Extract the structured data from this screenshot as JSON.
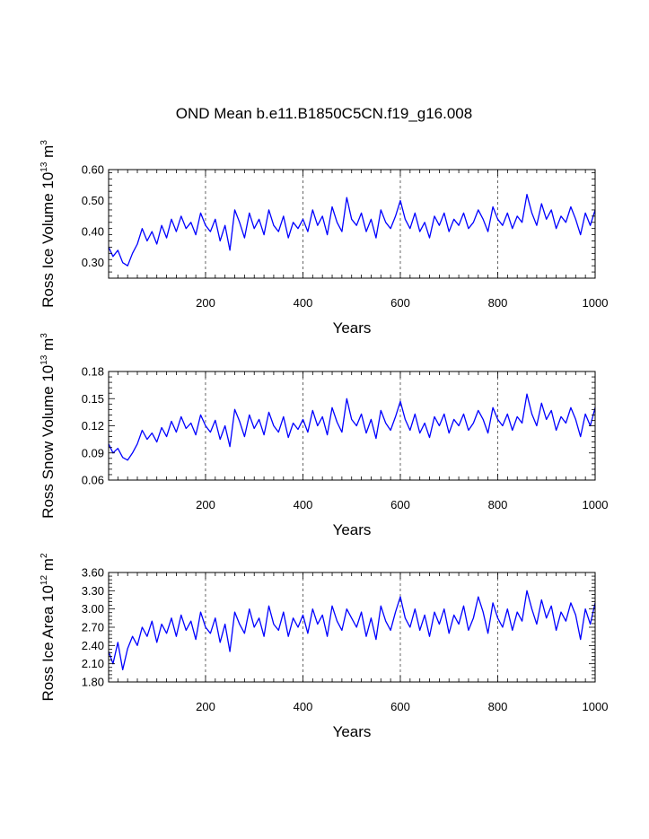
{
  "figure": {
    "title": "OND Mean b.e11.B1850C5CN.f19_g16.008"
  },
  "chart_data": [
    {
      "type": "line",
      "id": "ice-volume",
      "title": "OND Mean b.e11.B1850C5CN.f19_g16.008",
      "xlabel": "Years",
      "ylabel": "Ross Ice Volume 10",
      "ylabel_sup": "13",
      "ylabel_unit": " m",
      "ylabel_unit_sup": "3",
      "xlim": [
        1,
        1000
      ],
      "ylim": [
        0.25,
        0.6
      ],
      "xticks": [
        200,
        400,
        600,
        800,
        1000
      ],
      "xtick_labels": [
        "200",
        "400",
        "600",
        "800",
        "1000"
      ],
      "yticks": [
        0.3,
        0.4,
        0.5,
        0.6
      ],
      "ytick_labels": [
        "0.30",
        "0.40",
        "0.50",
        "0.60"
      ],
      "grid": "dashed vertical lines at 200, 400, 600, 800",
      "line_color": "#0000ff",
      "series": [
        {
          "name": "Ross Ice Volume",
          "x": [
            1,
            10,
            20,
            30,
            40,
            50,
            60,
            70,
            80,
            90,
            100,
            110,
            120,
            130,
            140,
            150,
            160,
            170,
            180,
            190,
            200,
            210,
            220,
            230,
            240,
            250,
            260,
            270,
            280,
            290,
            300,
            310,
            320,
            330,
            340,
            350,
            360,
            370,
            380,
            390,
            400,
            410,
            420,
            430,
            440,
            450,
            460,
            470,
            480,
            490,
            500,
            510,
            520,
            530,
            540,
            550,
            560,
            570,
            580,
            590,
            600,
            610,
            620,
            630,
            640,
            650,
            660,
            670,
            680,
            690,
            700,
            710,
            720,
            730,
            740,
            750,
            760,
            770,
            780,
            790,
            800,
            810,
            820,
            830,
            840,
            850,
            860,
            870,
            880,
            890,
            900,
            910,
            920,
            930,
            940,
            950,
            960,
            970,
            980,
            990,
            1000
          ],
          "values": [
            0.35,
            0.32,
            0.34,
            0.3,
            0.29,
            0.33,
            0.36,
            0.41,
            0.37,
            0.4,
            0.36,
            0.42,
            0.38,
            0.44,
            0.4,
            0.45,
            0.41,
            0.43,
            0.39,
            0.46,
            0.42,
            0.4,
            0.44,
            0.37,
            0.42,
            0.34,
            0.47,
            0.43,
            0.38,
            0.46,
            0.41,
            0.44,
            0.39,
            0.47,
            0.42,
            0.4,
            0.45,
            0.38,
            0.43,
            0.41,
            0.44,
            0.4,
            0.47,
            0.42,
            0.45,
            0.39,
            0.48,
            0.43,
            0.4,
            0.51,
            0.44,
            0.42,
            0.46,
            0.4,
            0.44,
            0.38,
            0.47,
            0.43,
            0.41,
            0.45,
            0.5,
            0.44,
            0.41,
            0.46,
            0.4,
            0.43,
            0.38,
            0.45,
            0.42,
            0.46,
            0.4,
            0.44,
            0.42,
            0.46,
            0.41,
            0.43,
            0.47,
            0.44,
            0.4,
            0.48,
            0.44,
            0.42,
            0.46,
            0.41,
            0.45,
            0.43,
            0.52,
            0.46,
            0.42,
            0.49,
            0.44,
            0.47,
            0.41,
            0.45,
            0.43,
            0.48,
            0.44,
            0.39,
            0.46,
            0.42,
            0.47
          ]
        }
      ]
    },
    {
      "type": "line",
      "id": "snow-volume",
      "xlabel": "Years",
      "ylabel": "Ross Snow Volume 10",
      "ylabel_sup": "13",
      "ylabel_unit": " m",
      "ylabel_unit_sup": "3",
      "xlim": [
        1,
        1000
      ],
      "ylim": [
        0.06,
        0.18
      ],
      "xticks": [
        200,
        400,
        600,
        800,
        1000
      ],
      "xtick_labels": [
        "200",
        "400",
        "600",
        "800",
        "1000"
      ],
      "yticks": [
        0.06,
        0.09,
        0.12,
        0.15,
        0.18
      ],
      "ytick_labels": [
        "0.06",
        "0.09",
        "0.12",
        "0.15",
        "0.18"
      ],
      "grid": "dashed vertical lines at 200, 400, 600, 800",
      "line_color": "#0000ff",
      "series": [
        {
          "name": "Ross Snow Volume",
          "x": [
            1,
            10,
            20,
            30,
            40,
            50,
            60,
            70,
            80,
            90,
            100,
            110,
            120,
            130,
            140,
            150,
            160,
            170,
            180,
            190,
            200,
            210,
            220,
            230,
            240,
            250,
            260,
            270,
            280,
            290,
            300,
            310,
            320,
            330,
            340,
            350,
            360,
            370,
            380,
            390,
            400,
            410,
            420,
            430,
            440,
            450,
            460,
            470,
            480,
            490,
            500,
            510,
            520,
            530,
            540,
            550,
            560,
            570,
            580,
            590,
            600,
            610,
            620,
            630,
            640,
            650,
            660,
            670,
            680,
            690,
            700,
            710,
            720,
            730,
            740,
            750,
            760,
            770,
            780,
            790,
            800,
            810,
            820,
            830,
            840,
            850,
            860,
            870,
            880,
            890,
            900,
            910,
            920,
            930,
            940,
            950,
            960,
            970,
            980,
            990,
            1000
          ],
          "values": [
            0.1,
            0.09,
            0.095,
            0.085,
            0.082,
            0.09,
            0.1,
            0.115,
            0.105,
            0.112,
            0.102,
            0.118,
            0.108,
            0.125,
            0.113,
            0.13,
            0.117,
            0.123,
            0.11,
            0.132,
            0.12,
            0.113,
            0.126,
            0.105,
            0.12,
            0.097,
            0.138,
            0.125,
            0.108,
            0.132,
            0.117,
            0.127,
            0.11,
            0.135,
            0.12,
            0.113,
            0.13,
            0.107,
            0.123,
            0.116,
            0.127,
            0.113,
            0.137,
            0.12,
            0.13,
            0.11,
            0.14,
            0.124,
            0.113,
            0.15,
            0.127,
            0.12,
            0.133,
            0.112,
            0.127,
            0.106,
            0.137,
            0.123,
            0.115,
            0.13,
            0.147,
            0.127,
            0.115,
            0.133,
            0.112,
            0.123,
            0.107,
            0.13,
            0.12,
            0.133,
            0.112,
            0.127,
            0.12,
            0.133,
            0.115,
            0.123,
            0.137,
            0.127,
            0.112,
            0.14,
            0.127,
            0.12,
            0.133,
            0.115,
            0.13,
            0.123,
            0.155,
            0.133,
            0.12,
            0.145,
            0.127,
            0.137,
            0.115,
            0.13,
            0.123,
            0.14,
            0.127,
            0.108,
            0.133,
            0.12,
            0.14
          ]
        }
      ]
    },
    {
      "type": "line",
      "id": "ice-area",
      "xlabel": "Years",
      "ylabel": "Ross Ice Area 10",
      "ylabel_sup": "12",
      "ylabel_unit": " m",
      "ylabel_unit_sup": "2",
      "xlim": [
        1,
        1000
      ],
      "ylim": [
        1.8,
        3.6
      ],
      "xticks": [
        200,
        400,
        600,
        800,
        1000
      ],
      "xtick_labels": [
        "200",
        "400",
        "600",
        "800",
        "1000"
      ],
      "yticks": [
        1.8,
        2.1,
        2.4,
        2.7,
        3.0,
        3.3,
        3.6
      ],
      "ytick_labels": [
        "1.80",
        "2.10",
        "2.40",
        "2.70",
        "3.00",
        "3.30",
        "3.60"
      ],
      "grid": "dashed vertical lines at 200, 400, 600, 800",
      "line_color": "#0000ff",
      "series": [
        {
          "name": "Ross Ice Area",
          "x": [
            1,
            10,
            20,
            30,
            40,
            50,
            60,
            70,
            80,
            90,
            100,
            110,
            120,
            130,
            140,
            150,
            160,
            170,
            180,
            190,
            200,
            210,
            220,
            230,
            240,
            250,
            260,
            270,
            280,
            290,
            300,
            310,
            320,
            330,
            340,
            350,
            360,
            370,
            380,
            390,
            400,
            410,
            420,
            430,
            440,
            450,
            460,
            470,
            480,
            490,
            500,
            510,
            520,
            530,
            540,
            550,
            560,
            570,
            580,
            590,
            600,
            610,
            620,
            630,
            640,
            650,
            660,
            670,
            680,
            690,
            700,
            710,
            720,
            730,
            740,
            750,
            760,
            770,
            780,
            790,
            800,
            810,
            820,
            830,
            840,
            850,
            860,
            870,
            880,
            890,
            900,
            910,
            920,
            930,
            940,
            950,
            960,
            970,
            980,
            990,
            1000
          ],
          "values": [
            2.3,
            2.1,
            2.45,
            2.0,
            2.35,
            2.55,
            2.4,
            2.7,
            2.55,
            2.8,
            2.45,
            2.75,
            2.6,
            2.85,
            2.55,
            2.9,
            2.65,
            2.8,
            2.5,
            2.95,
            2.7,
            2.6,
            2.85,
            2.45,
            2.75,
            2.3,
            2.95,
            2.75,
            2.6,
            3.0,
            2.7,
            2.85,
            2.55,
            3.05,
            2.75,
            2.65,
            2.95,
            2.55,
            2.85,
            2.7,
            2.9,
            2.6,
            3.0,
            2.75,
            2.9,
            2.55,
            3.05,
            2.8,
            2.65,
            3.0,
            2.85,
            2.7,
            2.95,
            2.55,
            2.85,
            2.5,
            3.05,
            2.8,
            2.65,
            2.95,
            3.2,
            2.85,
            2.7,
            3.0,
            2.65,
            2.9,
            2.55,
            2.95,
            2.75,
            3.0,
            2.6,
            2.9,
            2.75,
            3.05,
            2.65,
            2.85,
            3.2,
            2.95,
            2.6,
            3.1,
            2.85,
            2.7,
            3.0,
            2.65,
            2.95,
            2.8,
            3.3,
            3.0,
            2.75,
            3.15,
            2.85,
            3.05,
            2.65,
            2.95,
            2.8,
            3.1,
            2.9,
            2.5,
            3.0,
            2.75,
            3.1
          ]
        }
      ]
    }
  ]
}
